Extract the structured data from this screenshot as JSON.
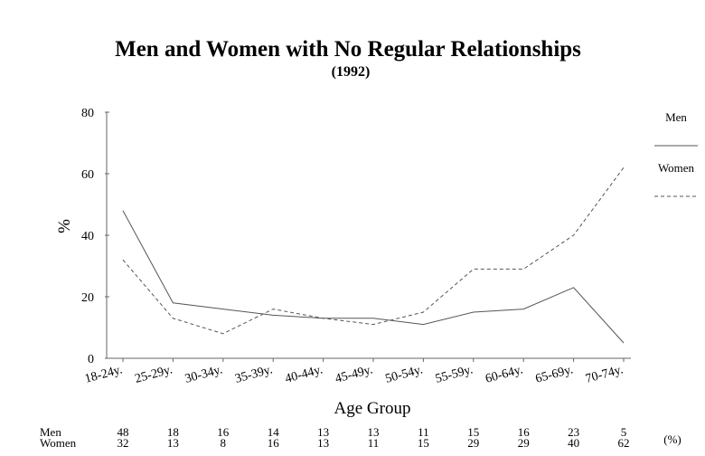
{
  "chart_data": {
    "type": "line",
    "title": "Men and Women with No Regular Relationships",
    "subtitle": "(1992)",
    "xlabel": "Age Group",
    "ylabel": "%",
    "ylim": [
      0,
      80
    ],
    "yticks": [
      0,
      20,
      40,
      60,
      80
    ],
    "categories": [
      "18-24y.",
      "25-29y.",
      "30-34y.",
      "35-39y.",
      "40-44y.",
      "45-49y.",
      "50-54y.",
      "55-59y.",
      "60-64y.",
      "65-69y.",
      "70-74y."
    ],
    "series": [
      {
        "name": "Men",
        "values": [
          48,
          18,
          16,
          14,
          13,
          13,
          11,
          15,
          16,
          23,
          5
        ],
        "style": "solid",
        "color": "#555555"
      },
      {
        "name": "Women",
        "values": [
          32,
          13,
          8,
          16,
          13,
          11,
          15,
          29,
          29,
          40,
          62
        ],
        "style": "dashed",
        "color": "#555555"
      }
    ],
    "legend_position": "right",
    "grid": false,
    "table_unit": "(%)"
  }
}
